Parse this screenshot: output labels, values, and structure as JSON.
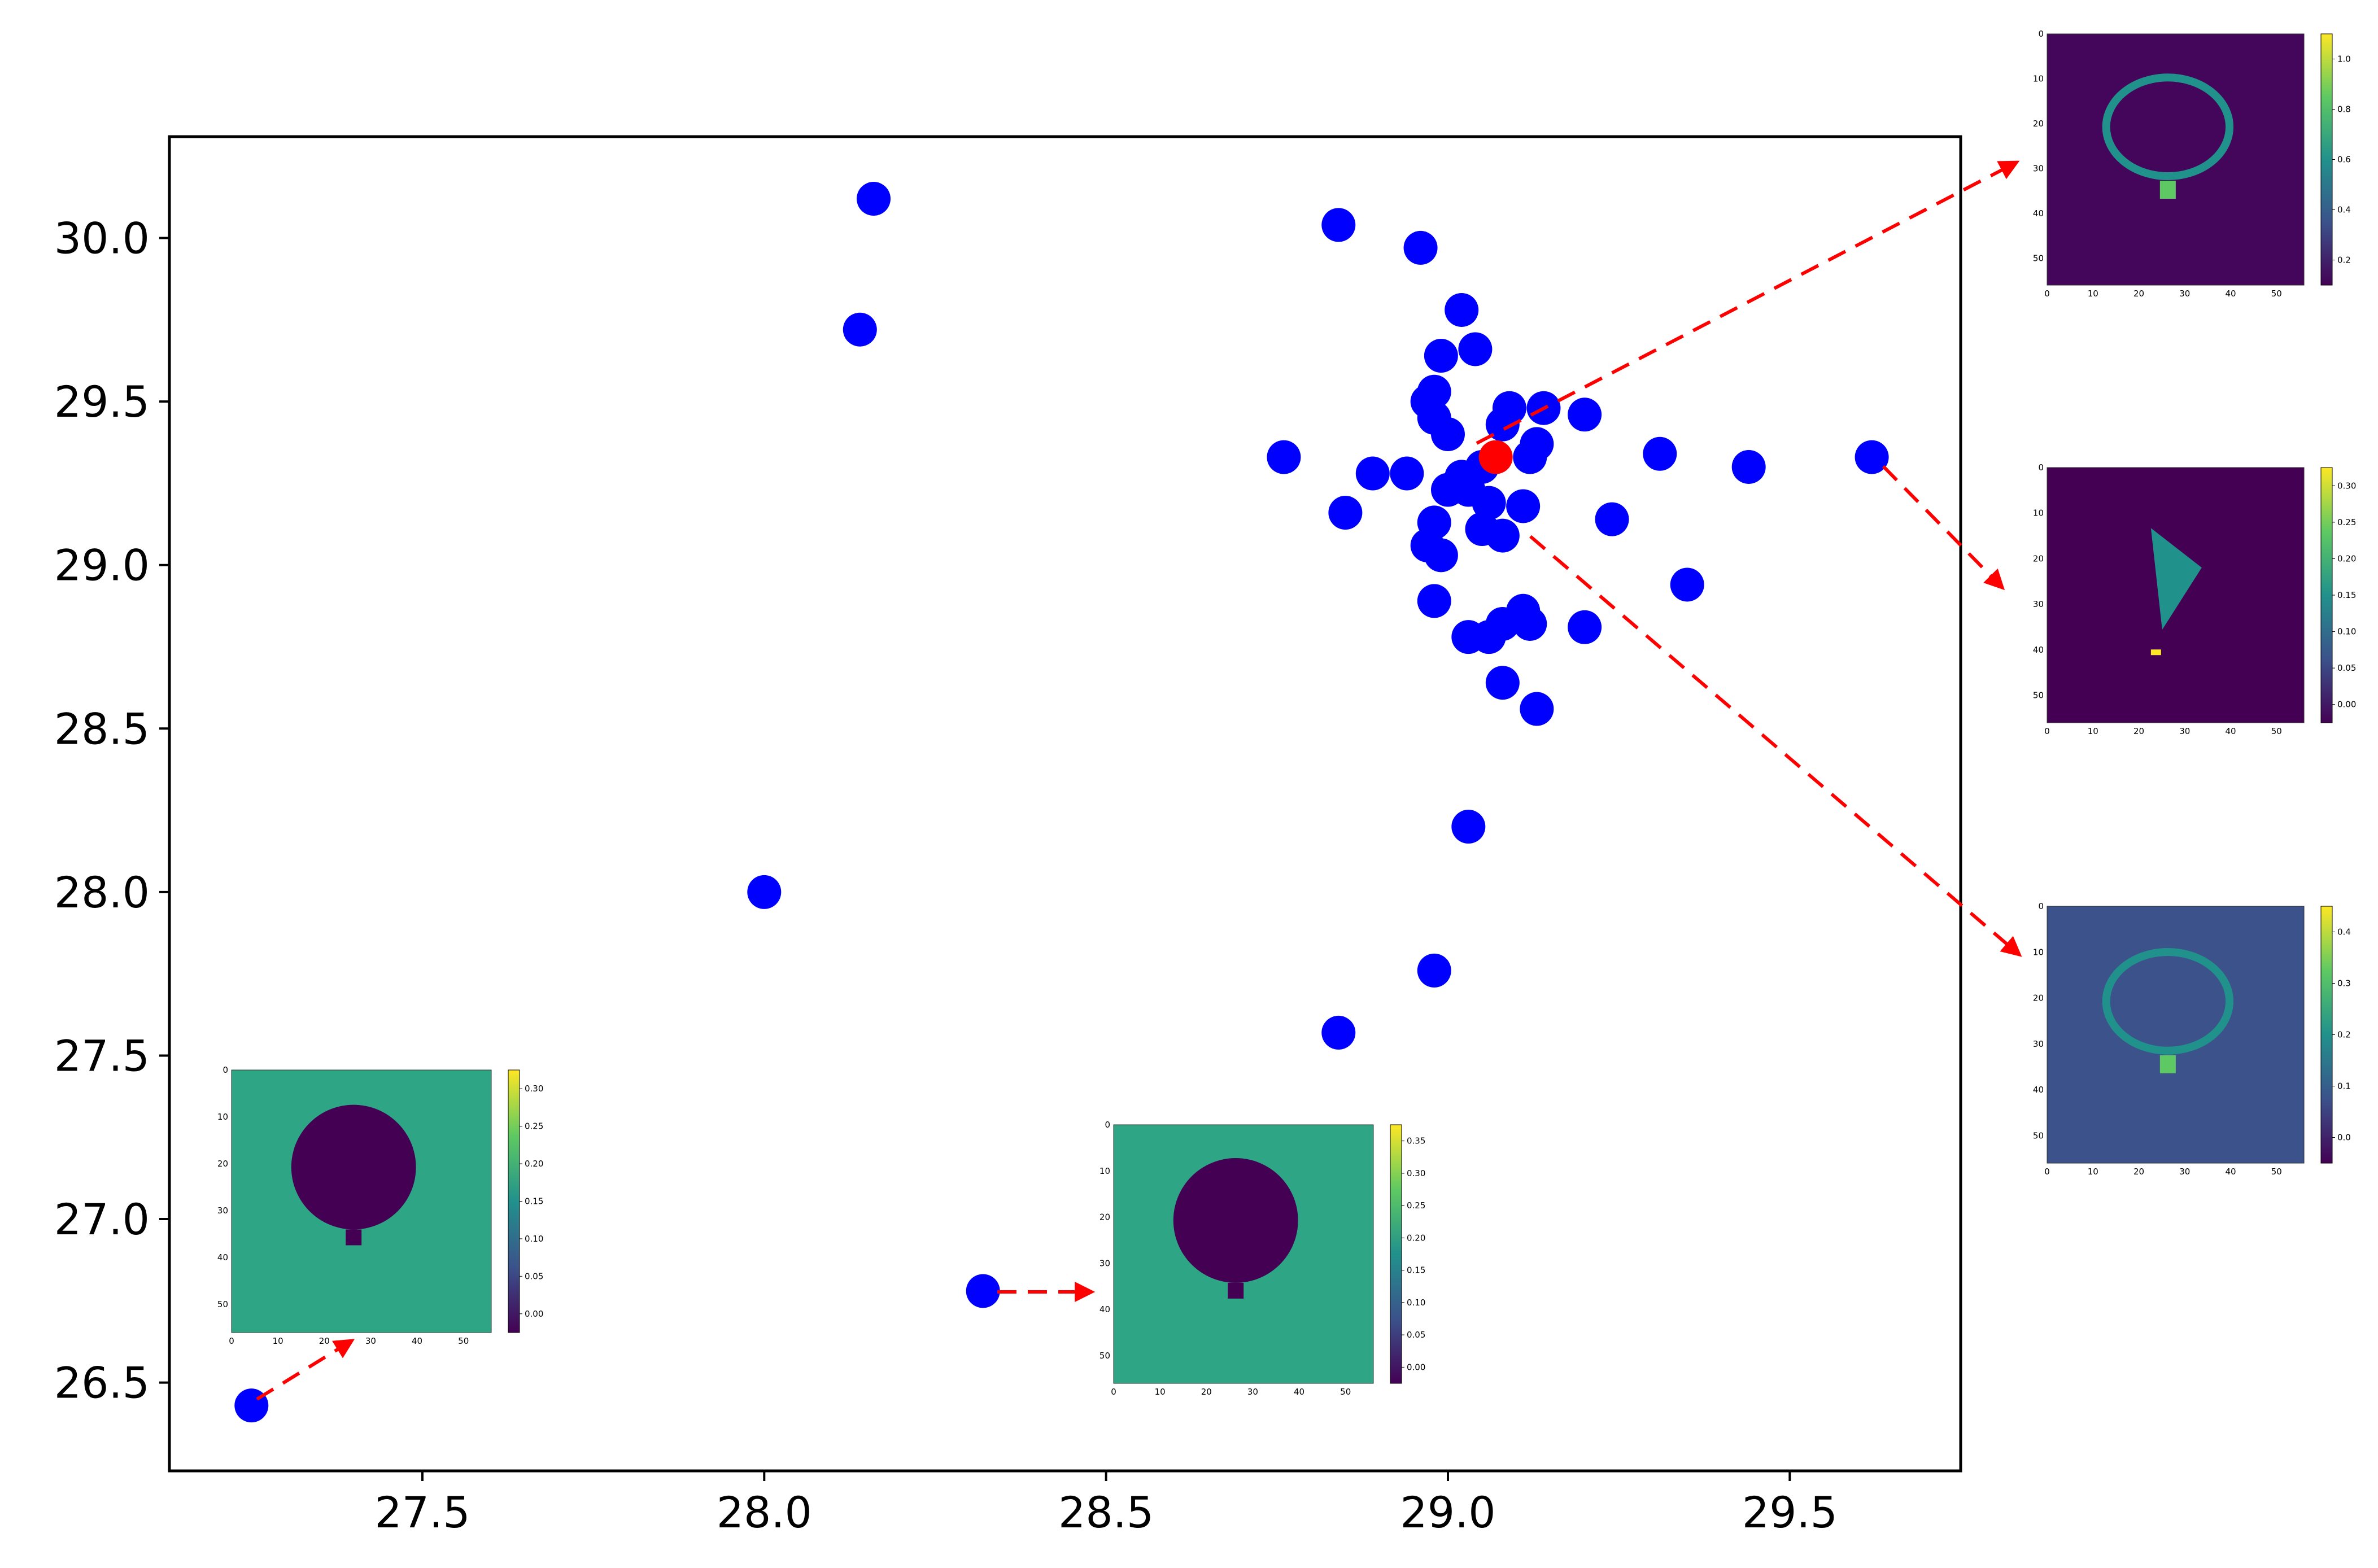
{
  "chart_data": {
    "type": "scatter",
    "title": "",
    "xlabel": "",
    "ylabel": "",
    "xlim": [
      27.13,
      29.75
    ],
    "ylim": [
      26.23,
      30.31
    ],
    "xticks": [
      "27.5",
      "28.0",
      "28.5",
      "29.0",
      "29.5"
    ],
    "yticks": [
      "26.5",
      "27.0",
      "27.5",
      "28.0",
      "28.5",
      "29.0",
      "29.5",
      "30.0"
    ],
    "grid": false,
    "legend": "none",
    "series": [
      {
        "color": "#0000ff",
        "points": [
          [
            27.25,
            26.43
          ],
          [
            28.32,
            26.78
          ],
          [
            28.0,
            28.0
          ],
          [
            28.14,
            29.72
          ],
          [
            28.16,
            30.12
          ],
          [
            28.84,
            30.04
          ],
          [
            28.96,
            29.97
          ],
          [
            29.02,
            29.78
          ],
          [
            29.04,
            29.66
          ],
          [
            28.99,
            29.64
          ],
          [
            28.98,
            29.53
          ],
          [
            28.97,
            29.5
          ],
          [
            28.98,
            29.45
          ],
          [
            29.0,
            29.4
          ],
          [
            29.09,
            29.48
          ],
          [
            29.14,
            29.48
          ],
          [
            29.2,
            29.46
          ],
          [
            29.08,
            29.43
          ],
          [
            29.13,
            29.37
          ],
          [
            29.12,
            29.33
          ],
          [
            28.76,
            29.33
          ],
          [
            29.31,
            29.34
          ],
          [
            29.44,
            29.3
          ],
          [
            29.62,
            29.33
          ],
          [
            28.89,
            29.28
          ],
          [
            28.94,
            29.28
          ],
          [
            29.0,
            29.23
          ],
          [
            29.02,
            29.27
          ],
          [
            29.05,
            29.3
          ],
          [
            29.03,
            29.23
          ],
          [
            29.06,
            29.19
          ],
          [
            29.11,
            29.18
          ],
          [
            28.85,
            29.16
          ],
          [
            29.24,
            29.14
          ],
          [
            28.98,
            29.13
          ],
          [
            29.05,
            29.11
          ],
          [
            29.08,
            29.09
          ],
          [
            28.97,
            29.06
          ],
          [
            28.99,
            29.03
          ],
          [
            29.35,
            28.94
          ],
          [
            28.98,
            28.89
          ],
          [
            29.11,
            28.86
          ],
          [
            29.08,
            28.82
          ],
          [
            29.12,
            28.82
          ],
          [
            29.2,
            28.81
          ],
          [
            29.03,
            28.78
          ],
          [
            29.06,
            28.78
          ],
          [
            29.08,
            28.64
          ],
          [
            29.13,
            28.56
          ],
          [
            29.03,
            28.2
          ],
          [
            28.98,
            27.76
          ],
          [
            28.84,
            27.57
          ]
        ]
      },
      {
        "color": "#ff0000",
        "points": [
          [
            29.07,
            29.33
          ]
        ]
      }
    ]
  },
  "insets": [
    {
      "name": "inset-top-right",
      "x_ticks": [
        "0",
        "10",
        "20",
        "30",
        "40",
        "50"
      ],
      "y_ticks": [
        "0",
        "10",
        "20",
        "30",
        "40",
        "50"
      ],
      "colorbar_ticks": [
        "0.2",
        "0.4",
        "0.6",
        "0.8",
        "1.0"
      ]
    },
    {
      "name": "inset-mid-right",
      "x_ticks": [
        "0",
        "10",
        "20",
        "30",
        "40",
        "50"
      ],
      "y_ticks": [
        "0",
        "10",
        "20",
        "30",
        "40",
        "50"
      ],
      "colorbar_ticks": [
        "0.00",
        "0.05",
        "0.10",
        "0.15",
        "0.20",
        "0.25",
        "0.30"
      ]
    },
    {
      "name": "inset-lower-right",
      "x_ticks": [
        "0",
        "10",
        "20",
        "30",
        "40",
        "50"
      ],
      "y_ticks": [
        "0",
        "10",
        "20",
        "30",
        "40",
        "50"
      ],
      "colorbar_ticks": [
        "0.0",
        "0.1",
        "0.2",
        "0.3",
        "0.4"
      ]
    },
    {
      "name": "inset-bottom-left",
      "x_ticks": [
        "0",
        "10",
        "20",
        "30",
        "40",
        "50"
      ],
      "y_ticks": [
        "0",
        "10",
        "20",
        "30",
        "40",
        "50"
      ],
      "colorbar_ticks": [
        "0.00",
        "0.05",
        "0.10",
        "0.15",
        "0.20",
        "0.25",
        "0.30"
      ]
    },
    {
      "name": "inset-bottom-center",
      "x_ticks": [
        "0",
        "10",
        "20",
        "30",
        "40",
        "50"
      ],
      "y_ticks": [
        "0",
        "10",
        "20",
        "30",
        "40",
        "50"
      ],
      "colorbar_ticks": [
        "0.00",
        "0.05",
        "0.10",
        "0.15",
        "0.20",
        "0.25",
        "0.30",
        "0.35"
      ]
    }
  ],
  "colors": {
    "viridis": [
      "#440154",
      "#3b528b",
      "#21918c",
      "#5ec962",
      "#fde725"
    ],
    "arrow": "#ff0000"
  }
}
